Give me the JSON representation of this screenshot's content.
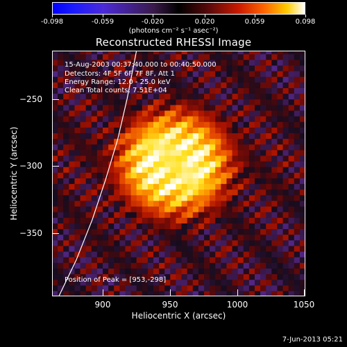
{
  "chart_data": {
    "type": "heatmap",
    "title": "Reconstructed RHESSI Image",
    "xlabel": "Heliocentric X (arcsec)",
    "ylabel": "Heliocentric Y (arcsec)",
    "xlim": [
      862,
      1051
    ],
    "ylim": [
      -397,
      -214
    ],
    "x_ticks": [
      900,
      950,
      1000,
      1050
    ],
    "y_ticks": [
      -250,
      -300,
      -350
    ],
    "colorbar": {
      "ticks": [
        "-0.098",
        "-0.059",
        "-0.020",
        "0.020",
        "0.059",
        "0.098"
      ],
      "unit_label": "(photons cm⁻² s⁻¹ asec⁻²)",
      "range": [
        -0.098,
        0.098
      ]
    },
    "info_lines": [
      "15-Aug-2003 00:37:40.000 to 00:40:50.000",
      "Detectors: 4F 5F 6F 7F 8F, Att 1",
      "Energy Range: 12.0 - 25.0 keV",
      "Clean     Total counts: 7.51E+04"
    ],
    "peak_label": "Position of Peak = [953,-298]",
    "peak": [
      953,
      -298
    ],
    "limb_curve": [
      [
        867,
        -397
      ],
      [
        880,
        -370
      ],
      [
        892,
        -340
      ],
      [
        902,
        -310
      ],
      [
        911,
        -280
      ],
      [
        918,
        -250
      ],
      [
        925,
        -214
      ]
    ]
  },
  "timestamp": "7-Jun-2013 05:21",
  "colors": {
    "background": "#000000",
    "foreground": "#ffffff"
  }
}
